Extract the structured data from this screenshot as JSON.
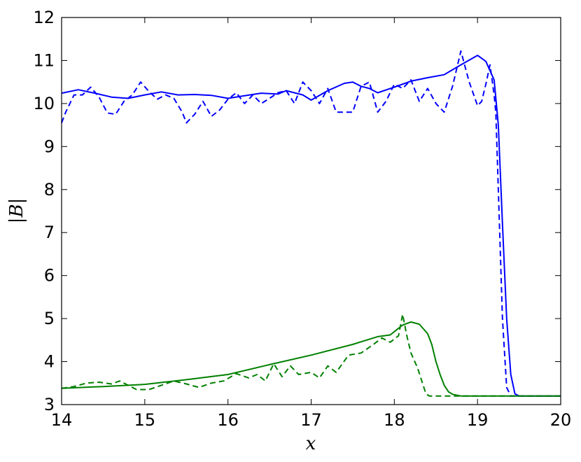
{
  "chart_data": {
    "type": "line",
    "title": "",
    "xlabel": "x",
    "ylabel": "|B|",
    "xlim": [
      14,
      20
    ],
    "ylim": [
      3,
      12
    ],
    "xticks": [
      14,
      15,
      16,
      17,
      18,
      19,
      20
    ],
    "yticks": [
      3,
      4,
      5,
      6,
      7,
      8,
      9,
      10,
      11,
      12
    ],
    "grid": false,
    "legend": "none",
    "series": [
      {
        "color": "#0000ff",
        "style": "solid",
        "points": [
          [
            14.0,
            10.24
          ],
          [
            14.2,
            10.32
          ],
          [
            14.4,
            10.24
          ],
          [
            14.6,
            10.15
          ],
          [
            14.8,
            10.12
          ],
          [
            15.0,
            10.2
          ],
          [
            15.2,
            10.27
          ],
          [
            15.4,
            10.2
          ],
          [
            15.6,
            10.21
          ],
          [
            15.8,
            10.19
          ],
          [
            16.0,
            10.12
          ],
          [
            16.2,
            10.18
          ],
          [
            16.4,
            10.24
          ],
          [
            16.6,
            10.22
          ],
          [
            16.7,
            10.3
          ],
          [
            16.9,
            10.2
          ],
          [
            17.0,
            10.08
          ],
          [
            17.2,
            10.3
          ],
          [
            17.4,
            10.47
          ],
          [
            17.5,
            10.5
          ],
          [
            17.6,
            10.4
          ],
          [
            17.7,
            10.35
          ],
          [
            17.8,
            10.25
          ],
          [
            18.0,
            10.38
          ],
          [
            18.2,
            10.52
          ],
          [
            18.4,
            10.6
          ],
          [
            18.6,
            10.67
          ],
          [
            18.8,
            10.9
          ],
          [
            19.0,
            11.12
          ],
          [
            19.1,
            10.98
          ],
          [
            19.2,
            10.55
          ],
          [
            19.25,
            9.5
          ],
          [
            19.3,
            7.2
          ],
          [
            19.35,
            5.0
          ],
          [
            19.4,
            3.7
          ],
          [
            19.45,
            3.25
          ],
          [
            19.5,
            3.2
          ],
          [
            20.0,
            3.2
          ]
        ]
      },
      {
        "color": "#0000ff",
        "style": "dashed",
        "points": [
          [
            14.0,
            9.55
          ],
          [
            14.05,
            9.8
          ],
          [
            14.15,
            10.2
          ],
          [
            14.25,
            10.2
          ],
          [
            14.35,
            10.38
          ],
          [
            14.45,
            10.15
          ],
          [
            14.55,
            9.78
          ],
          [
            14.65,
            9.75
          ],
          [
            14.75,
            10.05
          ],
          [
            14.85,
            10.2
          ],
          [
            14.95,
            10.5
          ],
          [
            15.05,
            10.28
          ],
          [
            15.15,
            10.1
          ],
          [
            15.25,
            10.2
          ],
          [
            15.35,
            10.12
          ],
          [
            15.45,
            9.8
          ],
          [
            15.5,
            9.55
          ],
          [
            15.6,
            9.75
          ],
          [
            15.7,
            10.05
          ],
          [
            15.8,
            9.7
          ],
          [
            15.9,
            9.85
          ],
          [
            16.0,
            10.1
          ],
          [
            16.1,
            10.25
          ],
          [
            16.2,
            10.0
          ],
          [
            16.3,
            10.2
          ],
          [
            16.4,
            10.0
          ],
          [
            16.5,
            10.12
          ],
          [
            16.6,
            10.25
          ],
          [
            16.7,
            10.3
          ],
          [
            16.8,
            10.0
          ],
          [
            16.9,
            10.5
          ],
          [
            17.0,
            10.3
          ],
          [
            17.1,
            10.0
          ],
          [
            17.2,
            10.35
          ],
          [
            17.3,
            9.8
          ],
          [
            17.4,
            9.8
          ],
          [
            17.5,
            9.8
          ],
          [
            17.6,
            10.4
          ],
          [
            17.7,
            10.5
          ],
          [
            17.8,
            9.8
          ],
          [
            17.9,
            10.05
          ],
          [
            18.0,
            10.45
          ],
          [
            18.1,
            10.35
          ],
          [
            18.2,
            10.55
          ],
          [
            18.3,
            10.05
          ],
          [
            18.4,
            10.35
          ],
          [
            18.5,
            10.0
          ],
          [
            18.6,
            9.8
          ],
          [
            18.7,
            10.4
          ],
          [
            18.8,
            11.22
          ],
          [
            18.9,
            10.5
          ],
          [
            19.0,
            9.95
          ],
          [
            19.05,
            10.05
          ],
          [
            19.1,
            10.45
          ],
          [
            19.15,
            10.9
          ],
          [
            19.2,
            10.2
          ],
          [
            19.22,
            9.8
          ],
          [
            19.25,
            8.0
          ],
          [
            19.3,
            5.0
          ],
          [
            19.35,
            3.4
          ],
          [
            19.4,
            3.2
          ],
          [
            20.0,
            3.2
          ]
        ]
      },
      {
        "color": "#008000",
        "style": "solid",
        "points": [
          [
            14.0,
            3.38
          ],
          [
            14.5,
            3.42
          ],
          [
            15.0,
            3.47
          ],
          [
            15.5,
            3.58
          ],
          [
            16.0,
            3.7
          ],
          [
            16.5,
            3.93
          ],
          [
            17.0,
            4.15
          ],
          [
            17.5,
            4.4
          ],
          [
            17.8,
            4.58
          ],
          [
            17.95,
            4.62
          ],
          [
            18.1,
            4.85
          ],
          [
            18.2,
            4.92
          ],
          [
            18.3,
            4.87
          ],
          [
            18.4,
            4.65
          ],
          [
            18.45,
            4.4
          ],
          [
            18.5,
            4.0
          ],
          [
            18.55,
            3.7
          ],
          [
            18.6,
            3.45
          ],
          [
            18.65,
            3.3
          ],
          [
            18.7,
            3.24
          ],
          [
            18.8,
            3.2
          ],
          [
            20.0,
            3.2
          ]
        ]
      },
      {
        "color": "#008000",
        "style": "dashed",
        "points": [
          [
            14.0,
            3.38
          ],
          [
            14.15,
            3.42
          ],
          [
            14.3,
            3.5
          ],
          [
            14.45,
            3.52
          ],
          [
            14.6,
            3.48
          ],
          [
            14.7,
            3.55
          ],
          [
            14.8,
            3.45
          ],
          [
            14.9,
            3.35
          ],
          [
            15.05,
            3.35
          ],
          [
            15.2,
            3.45
          ],
          [
            15.35,
            3.55
          ],
          [
            15.5,
            3.48
          ],
          [
            15.65,
            3.4
          ],
          [
            15.8,
            3.5
          ],
          [
            15.95,
            3.55
          ],
          [
            16.1,
            3.72
          ],
          [
            16.25,
            3.62
          ],
          [
            16.35,
            3.7
          ],
          [
            16.45,
            3.55
          ],
          [
            16.55,
            3.95
          ],
          [
            16.65,
            3.65
          ],
          [
            16.75,
            3.9
          ],
          [
            16.85,
            3.7
          ],
          [
            17.0,
            3.75
          ],
          [
            17.1,
            3.62
          ],
          [
            17.2,
            3.9
          ],
          [
            17.3,
            3.75
          ],
          [
            17.45,
            4.15
          ],
          [
            17.6,
            4.2
          ],
          [
            17.75,
            4.4
          ],
          [
            17.85,
            4.55
          ],
          [
            17.95,
            4.45
          ],
          [
            18.05,
            4.6
          ],
          [
            18.1,
            5.1
          ],
          [
            18.15,
            4.6
          ],
          [
            18.2,
            4.2
          ],
          [
            18.28,
            3.85
          ],
          [
            18.33,
            3.55
          ],
          [
            18.38,
            3.25
          ],
          [
            18.42,
            3.2
          ],
          [
            20.0,
            3.2
          ]
        ]
      }
    ]
  }
}
